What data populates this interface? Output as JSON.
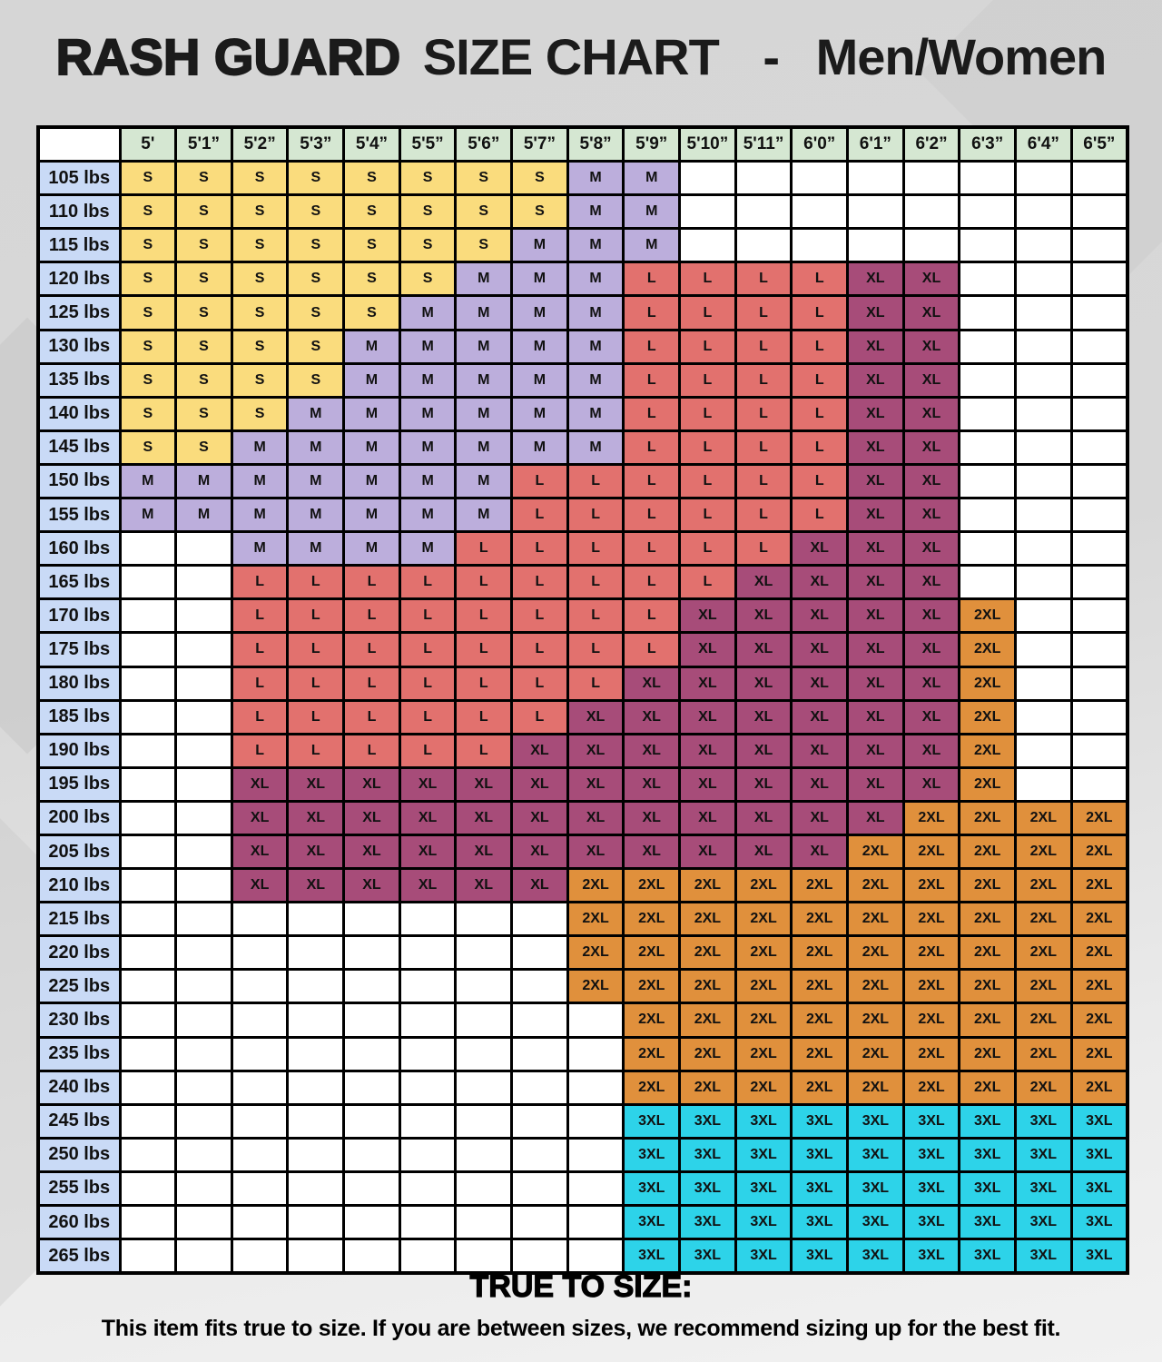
{
  "title": {
    "primary": "RASH GUARD",
    "secondary": "SIZE CHART",
    "dash": "-",
    "audience": "Men/Women"
  },
  "footer": {
    "heading": "TRUE TO SIZE:",
    "text": "This item fits true to size. If you are between sizes, we recommend sizing up for the best fit."
  },
  "colors": {
    "sizes": {
      "S": "#FADC7D",
      "M": "#BCAEDC",
      "L": "#E2716E",
      "XL": "#A74C79",
      "2XL": "#E0903C",
      "3XL": "#2DD3E9"
    },
    "column_header": "#D5E7D2",
    "row_header": "#C9DAF6",
    "empty_cell": "#FFFFFF",
    "border": "#000000"
  },
  "chart_data": {
    "type": "table",
    "title": "RASH GUARD SIZE CHART - Men/Women",
    "x_axis": "height",
    "y_axis": "weight",
    "legend_values": [
      "S",
      "M",
      "L",
      "XL",
      "2XL",
      "3XL"
    ],
    "columns": [
      "5'",
      "5'1”",
      "5'2”",
      "5'3”",
      "5'4”",
      "5'5”",
      "5'6”",
      "5'7”",
      "5'8”",
      "5'9”",
      "5'10”",
      "5'11”",
      "6'0”",
      "6'1”",
      "6'2”",
      "6'3”",
      "6'4”",
      "6'5”"
    ],
    "rows": [
      {
        "label": "105 lbs",
        "cells": [
          "S",
          "S",
          "S",
          "S",
          "S",
          "S",
          "S",
          "S",
          "M",
          "M",
          "",
          "",
          "",
          "",
          "",
          "",
          "",
          ""
        ]
      },
      {
        "label": "110 lbs",
        "cells": [
          "S",
          "S",
          "S",
          "S",
          "S",
          "S",
          "S",
          "S",
          "M",
          "M",
          "",
          "",
          "",
          "",
          "",
          "",
          "",
          ""
        ]
      },
      {
        "label": "115 lbs",
        "cells": [
          "S",
          "S",
          "S",
          "S",
          "S",
          "S",
          "S",
          "M",
          "M",
          "M",
          "",
          "",
          "",
          "",
          "",
          "",
          "",
          ""
        ]
      },
      {
        "label": "120 lbs",
        "cells": [
          "S",
          "S",
          "S",
          "S",
          "S",
          "S",
          "M",
          "M",
          "M",
          "L",
          "L",
          "L",
          "L",
          "XL",
          "XL",
          "",
          "",
          ""
        ]
      },
      {
        "label": "125 lbs",
        "cells": [
          "S",
          "S",
          "S",
          "S",
          "S",
          "M",
          "M",
          "M",
          "M",
          "L",
          "L",
          "L",
          "L",
          "XL",
          "XL",
          "",
          "",
          ""
        ]
      },
      {
        "label": "130 lbs",
        "cells": [
          "S",
          "S",
          "S",
          "S",
          "M",
          "M",
          "M",
          "M",
          "M",
          "L",
          "L",
          "L",
          "L",
          "XL",
          "XL",
          "",
          "",
          ""
        ]
      },
      {
        "label": "135 lbs",
        "cells": [
          "S",
          "S",
          "S",
          "S",
          "M",
          "M",
          "M",
          "M",
          "M",
          "L",
          "L",
          "L",
          "L",
          "XL",
          "XL",
          "",
          "",
          ""
        ]
      },
      {
        "label": "140 lbs",
        "cells": [
          "S",
          "S",
          "S",
          "M",
          "M",
          "M",
          "M",
          "M",
          "M",
          "L",
          "L",
          "L",
          "L",
          "XL",
          "XL",
          "",
          "",
          ""
        ]
      },
      {
        "label": "145 lbs",
        "cells": [
          "S",
          "S",
          "M",
          "M",
          "M",
          "M",
          "M",
          "M",
          "M",
          "L",
          "L",
          "L",
          "L",
          "XL",
          "XL",
          "",
          "",
          ""
        ]
      },
      {
        "label": "150 lbs",
        "cells": [
          "M",
          "M",
          "M",
          "M",
          "M",
          "M",
          "M",
          "L",
          "L",
          "L",
          "L",
          "L",
          "L",
          "XL",
          "XL",
          "",
          "",
          ""
        ]
      },
      {
        "label": "155 lbs",
        "cells": [
          "M",
          "M",
          "M",
          "M",
          "M",
          "M",
          "M",
          "L",
          "L",
          "L",
          "L",
          "L",
          "L",
          "XL",
          "XL",
          "",
          "",
          ""
        ]
      },
      {
        "label": "160 lbs",
        "cells": [
          "",
          "",
          "M",
          "M",
          "M",
          "M",
          "L",
          "L",
          "L",
          "L",
          "L",
          "L",
          "XL",
          "XL",
          "XL",
          "",
          "",
          ""
        ]
      },
      {
        "label": "165 lbs",
        "cells": [
          "",
          "",
          "L",
          "L",
          "L",
          "L",
          "L",
          "L",
          "L",
          "L",
          "L",
          "XL",
          "XL",
          "XL",
          "XL",
          "",
          "",
          ""
        ]
      },
      {
        "label": "170 lbs",
        "cells": [
          "",
          "",
          "L",
          "L",
          "L",
          "L",
          "L",
          "L",
          "L",
          "L",
          "XL",
          "XL",
          "XL",
          "XL",
          "XL",
          "2XL",
          "",
          ""
        ]
      },
      {
        "label": "175 lbs",
        "cells": [
          "",
          "",
          "L",
          "L",
          "L",
          "L",
          "L",
          "L",
          "L",
          "L",
          "XL",
          "XL",
          "XL",
          "XL",
          "XL",
          "2XL",
          "",
          ""
        ]
      },
      {
        "label": "180 lbs",
        "cells": [
          "",
          "",
          "L",
          "L",
          "L",
          "L",
          "L",
          "L",
          "L",
          "XL",
          "XL",
          "XL",
          "XL",
          "XL",
          "XL",
          "2XL",
          "",
          ""
        ]
      },
      {
        "label": "185 lbs",
        "cells": [
          "",
          "",
          "L",
          "L",
          "L",
          "L",
          "L",
          "L",
          "XL",
          "XL",
          "XL",
          "XL",
          "XL",
          "XL",
          "XL",
          "2XL",
          "",
          ""
        ]
      },
      {
        "label": "190 lbs",
        "cells": [
          "",
          "",
          "L",
          "L",
          "L",
          "L",
          "L",
          "XL",
          "XL",
          "XL",
          "XL",
          "XL",
          "XL",
          "XL",
          "XL",
          "2XL",
          "",
          ""
        ]
      },
      {
        "label": "195 lbs",
        "cells": [
          "",
          "",
          "XL",
          "XL",
          "XL",
          "XL",
          "XL",
          "XL",
          "XL",
          "XL",
          "XL",
          "XL",
          "XL",
          "XL",
          "XL",
          "2XL",
          "",
          ""
        ]
      },
      {
        "label": "200 lbs",
        "cells": [
          "",
          "",
          "XL",
          "XL",
          "XL",
          "XL",
          "XL",
          "XL",
          "XL",
          "XL",
          "XL",
          "XL",
          "XL",
          "XL",
          "2XL",
          "2XL",
          "2XL",
          "2XL"
        ]
      },
      {
        "label": "205 lbs",
        "cells": [
          "",
          "",
          "XL",
          "XL",
          "XL",
          "XL",
          "XL",
          "XL",
          "XL",
          "XL",
          "XL",
          "XL",
          "XL",
          "2XL",
          "2XL",
          "2XL",
          "2XL",
          "2XL"
        ]
      },
      {
        "label": "210 lbs",
        "cells": [
          "",
          "",
          "XL",
          "XL",
          "XL",
          "XL",
          "XL",
          "XL",
          "2XL",
          "2XL",
          "2XL",
          "2XL",
          "2XL",
          "2XL",
          "2XL",
          "2XL",
          "2XL",
          "2XL"
        ]
      },
      {
        "label": "215 lbs",
        "cells": [
          "",
          "",
          "",
          "",
          "",
          "",
          "",
          "",
          "2XL",
          "2XL",
          "2XL",
          "2XL",
          "2XL",
          "2XL",
          "2XL",
          "2XL",
          "2XL",
          "2XL"
        ]
      },
      {
        "label": "220 lbs",
        "cells": [
          "",
          "",
          "",
          "",
          "",
          "",
          "",
          "",
          "2XL",
          "2XL",
          "2XL",
          "2XL",
          "2XL",
          "2XL",
          "2XL",
          "2XL",
          "2XL",
          "2XL"
        ]
      },
      {
        "label": "225 lbs",
        "cells": [
          "",
          "",
          "",
          "",
          "",
          "",
          "",
          "",
          "2XL",
          "2XL",
          "2XL",
          "2XL",
          "2XL",
          "2XL",
          "2XL",
          "2XL",
          "2XL",
          "2XL"
        ]
      },
      {
        "label": "230 lbs",
        "cells": [
          "",
          "",
          "",
          "",
          "",
          "",
          "",
          "",
          "",
          "2XL",
          "2XL",
          "2XL",
          "2XL",
          "2XL",
          "2XL",
          "2XL",
          "2XL",
          "2XL"
        ]
      },
      {
        "label": "235 lbs",
        "cells": [
          "",
          "",
          "",
          "",
          "",
          "",
          "",
          "",
          "",
          "2XL",
          "2XL",
          "2XL",
          "2XL",
          "2XL",
          "2XL",
          "2XL",
          "2XL",
          "2XL"
        ]
      },
      {
        "label": "240 lbs",
        "cells": [
          "",
          "",
          "",
          "",
          "",
          "",
          "",
          "",
          "",
          "2XL",
          "2XL",
          "2XL",
          "2XL",
          "2XL",
          "2XL",
          "2XL",
          "2XL",
          "2XL"
        ]
      },
      {
        "label": "245 lbs",
        "cells": [
          "",
          "",
          "",
          "",
          "",
          "",
          "",
          "",
          "",
          "3XL",
          "3XL",
          "3XL",
          "3XL",
          "3XL",
          "3XL",
          "3XL",
          "3XL",
          "3XL"
        ]
      },
      {
        "label": "250 lbs",
        "cells": [
          "",
          "",
          "",
          "",
          "",
          "",
          "",
          "",
          "",
          "3XL",
          "3XL",
          "3XL",
          "3XL",
          "3XL",
          "3XL",
          "3XL",
          "3XL",
          "3XL"
        ]
      },
      {
        "label": "255 lbs",
        "cells": [
          "",
          "",
          "",
          "",
          "",
          "",
          "",
          "",
          "",
          "3XL",
          "3XL",
          "3XL",
          "3XL",
          "3XL",
          "3XL",
          "3XL",
          "3XL",
          "3XL"
        ]
      },
      {
        "label": "260 lbs",
        "cells": [
          "",
          "",
          "",
          "",
          "",
          "",
          "",
          "",
          "",
          "3XL",
          "3XL",
          "3XL",
          "3XL",
          "3XL",
          "3XL",
          "3XL",
          "3XL",
          "3XL"
        ]
      },
      {
        "label": "265 lbs",
        "cells": [
          "",
          "",
          "",
          "",
          "",
          "",
          "",
          "",
          "",
          "3XL",
          "3XL",
          "3XL",
          "3XL",
          "3XL",
          "3XL",
          "3XL",
          "3XL",
          "3XL"
        ]
      }
    ]
  }
}
